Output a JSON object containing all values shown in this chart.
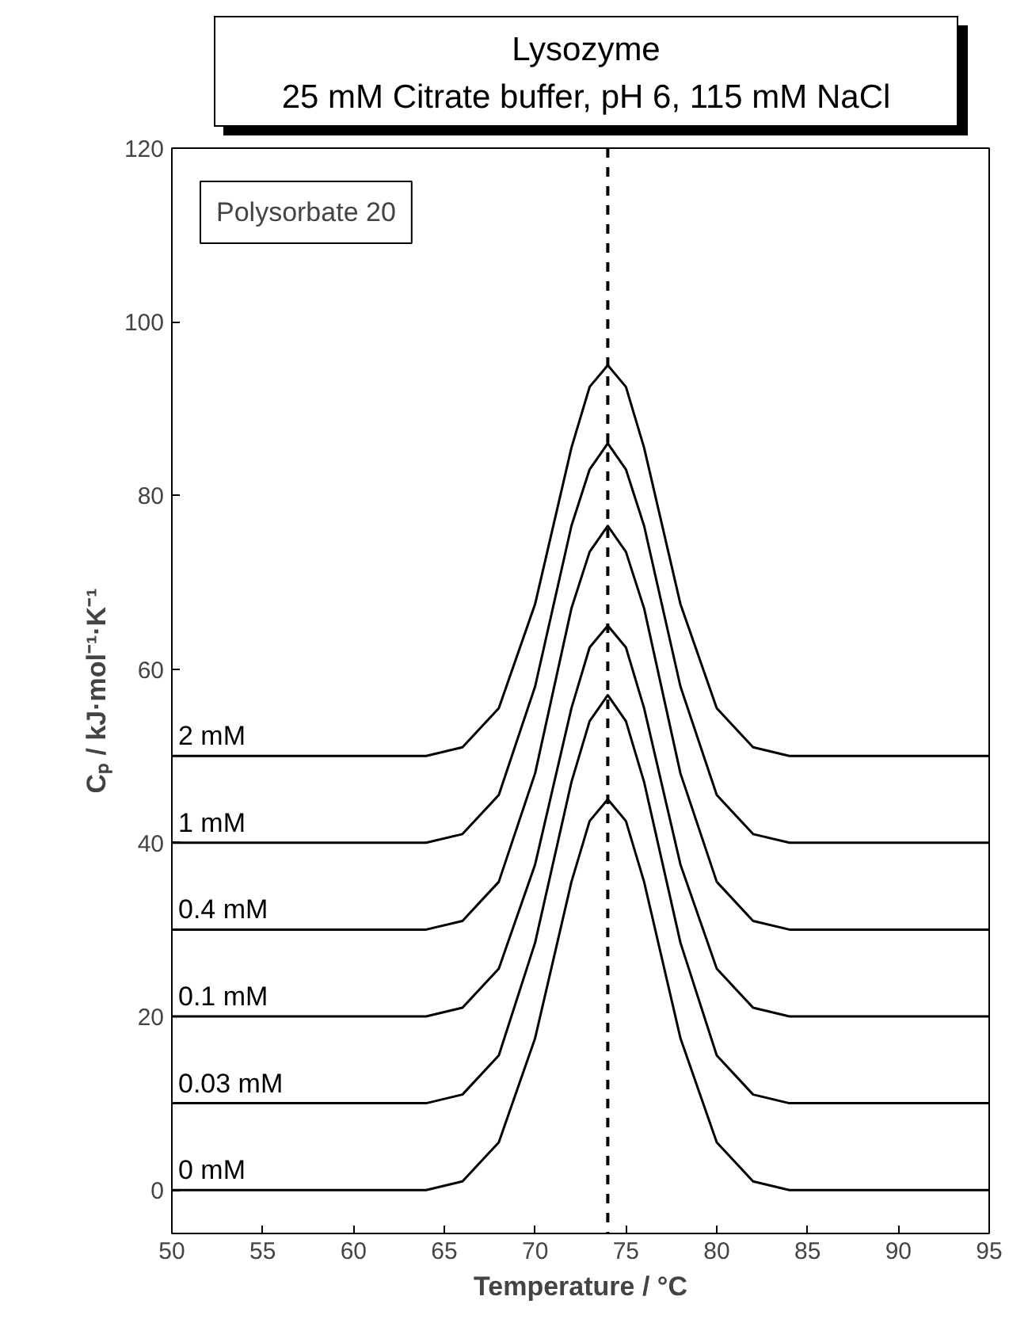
{
  "chart_data": {
    "type": "line",
    "title": "Lysozyme\n25 mM Citrate buffer, pH 6, 115 mM NaCl",
    "xlabel": "Temperature / °C",
    "ylabel": "Cₚ / kJ·mol⁻¹·K⁻¹",
    "annotations": [
      "Polysorbate 20"
    ],
    "x": [
      50,
      60,
      64,
      66,
      68,
      70,
      72,
      73,
      74,
      75,
      76,
      78,
      80,
      82,
      84,
      90,
      95
    ],
    "series": [
      {
        "name": "0 mM",
        "color": "#000000",
        "values": [
          0,
          0,
          0,
          1,
          5.5,
          17.5,
          35.5,
          42.5,
          45,
          42.5,
          35.5,
          17.5,
          5.5,
          1,
          0,
          0,
          0
        ]
      },
      {
        "name": "0.03 mM",
        "color": "#000000",
        "values": [
          10,
          10,
          10,
          11,
          15.5,
          28.5,
          47,
          54,
          57,
          54,
          47,
          28.5,
          15.5,
          11,
          10,
          10,
          10
        ]
      },
      {
        "name": "0.1 mM",
        "color": "#000000",
        "values": [
          20,
          20,
          20,
          21,
          25.5,
          37.5,
          55.5,
          62.5,
          65,
          62.5,
          55.5,
          37.5,
          25.5,
          21,
          20,
          20,
          20
        ]
      },
      {
        "name": "0.4 mM",
        "color": "#000000",
        "values": [
          30,
          30,
          30,
          31,
          35.5,
          48,
          67,
          73.5,
          76.5,
          73.5,
          67,
          48,
          35.5,
          31,
          30,
          30,
          30
        ]
      },
      {
        "name": "1 mM",
        "color": "#000000",
        "values": [
          40,
          40,
          40,
          41,
          45.5,
          58,
          76.5,
          83,
          86,
          83,
          76.5,
          58,
          45.5,
          41,
          40,
          40,
          40
        ]
      },
      {
        "name": "2 mM",
        "color": "#000000",
        "values": [
          50,
          50,
          50,
          51,
          55.5,
          67.5,
          85.5,
          92.5,
          95,
          92.5,
          85.5,
          67.5,
          55.5,
          51,
          50,
          50,
          50
        ]
      }
    ],
    "xlim": [
      50,
      95
    ],
    "ylim": [
      -5,
      120
    ],
    "xticks": [
      50,
      55,
      60,
      65,
      70,
      75,
      80,
      85,
      90,
      95
    ],
    "yticks": [
      0,
      20,
      40,
      60,
      80,
      100,
      120
    ],
    "ref_lines": [
      {
        "axis": "x",
        "value": 74,
        "line_style": "dashed",
        "color": "#000000"
      }
    ],
    "grid": false,
    "marker": "none",
    "line_style": "solid"
  }
}
